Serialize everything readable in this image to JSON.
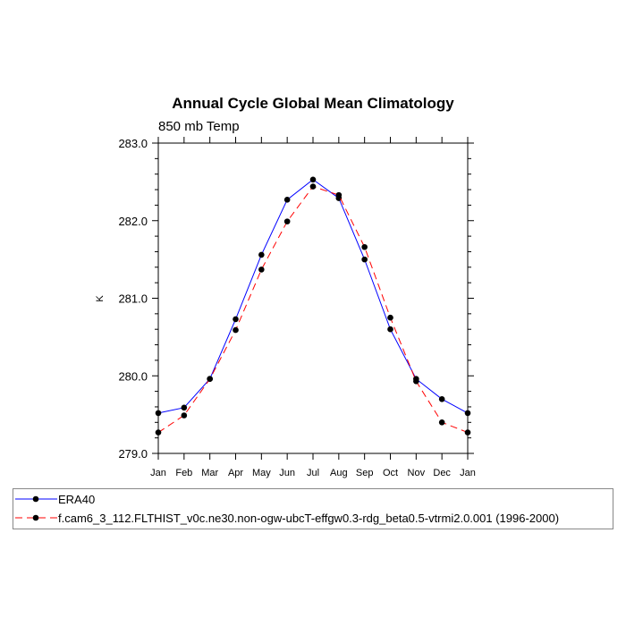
{
  "chart_data": {
    "type": "line",
    "title": "Annual Cycle Global Mean Climatology",
    "subtitle": "850 mb Temp",
    "xlabel": "",
    "ylabel": "K",
    "categories": [
      "Jan",
      "Feb",
      "Mar",
      "Apr",
      "May",
      "Jun",
      "Jul",
      "Aug",
      "Sep",
      "Oct",
      "Nov",
      "Dec",
      "Jan"
    ],
    "ylim": [
      279.0,
      283.0
    ],
    "yticks": [
      279.0,
      280.0,
      281.0,
      282.0,
      283.0
    ],
    "ytick_labels": [
      "279.0",
      "280.0",
      "281.0",
      "282.0",
      "283.0"
    ],
    "series": [
      {
        "name": "ERA40",
        "color": "#0000ff",
        "dash": "solid",
        "values": [
          279.52,
          279.59,
          279.96,
          280.73,
          281.56,
          282.27,
          282.53,
          282.29,
          281.5,
          280.6,
          279.96,
          279.7,
          279.52
        ]
      },
      {
        "name": "f.cam6_3_112.FLTHIST_v0c.ne30.non-ogw-ubcT-effgw0.3-rdg_beta0.5-vtrmi2.0.001 (1996-2000)",
        "color": "#ff0000",
        "dash": "dashed",
        "values": [
          279.27,
          279.49,
          279.96,
          280.59,
          281.37,
          281.99,
          282.44,
          282.33,
          281.66,
          280.75,
          279.93,
          279.4,
          279.27
        ]
      }
    ],
    "legend_position": "bottom"
  }
}
